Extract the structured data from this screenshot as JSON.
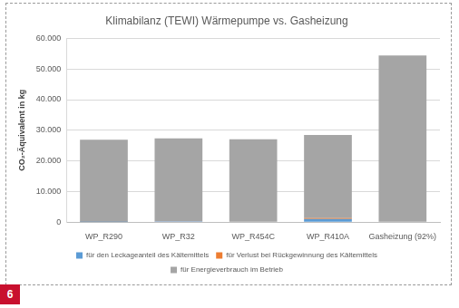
{
  "chart_data": {
    "type": "bar",
    "title": "Klimabilanz (TEWI) Wärmepumpe vs. Gasheizung",
    "y_label": "CO₂-Äquivalent in kg",
    "categories": [
      "WP_R290",
      "WP_R32",
      "WP_R454C",
      "WP_R410A",
      "Gasheizung (92%)"
    ],
    "series": [
      {
        "name": "für den Leckageanteil des Kältemittels",
        "color": "#5b9bd5",
        "values": [
          5,
          300,
          100,
          1050,
          0
        ]
      },
      {
        "name": "für Verlust bei Rückgewinnung des Kältemittels",
        "color": "#ed7d31",
        "values": [
          2,
          80,
          30,
          300,
          0
        ]
      },
      {
        "name": "für Energieverbrauch im Betrieb",
        "color": "#a5a5a5",
        "values": [
          26900,
          27000,
          26950,
          27100,
          54400
        ]
      }
    ],
    "ylim": [
      0,
      60000
    ],
    "yticks": [
      0,
      {
        "value": 10000,
        "label": "10.000"
      },
      {
        "value": 20000,
        "label": "20.000"
      },
      {
        "value": 30000,
        "label": "30.000"
      },
      {
        "value": 40000,
        "label": "40.000"
      },
      {
        "value": 50000,
        "label": "50.000"
      },
      {
        "value": 60000,
        "label": "60.000"
      }
    ],
    "stacked": true,
    "grid": true,
    "legend": "bottom",
    "annotations": [
      "6"
    ]
  }
}
